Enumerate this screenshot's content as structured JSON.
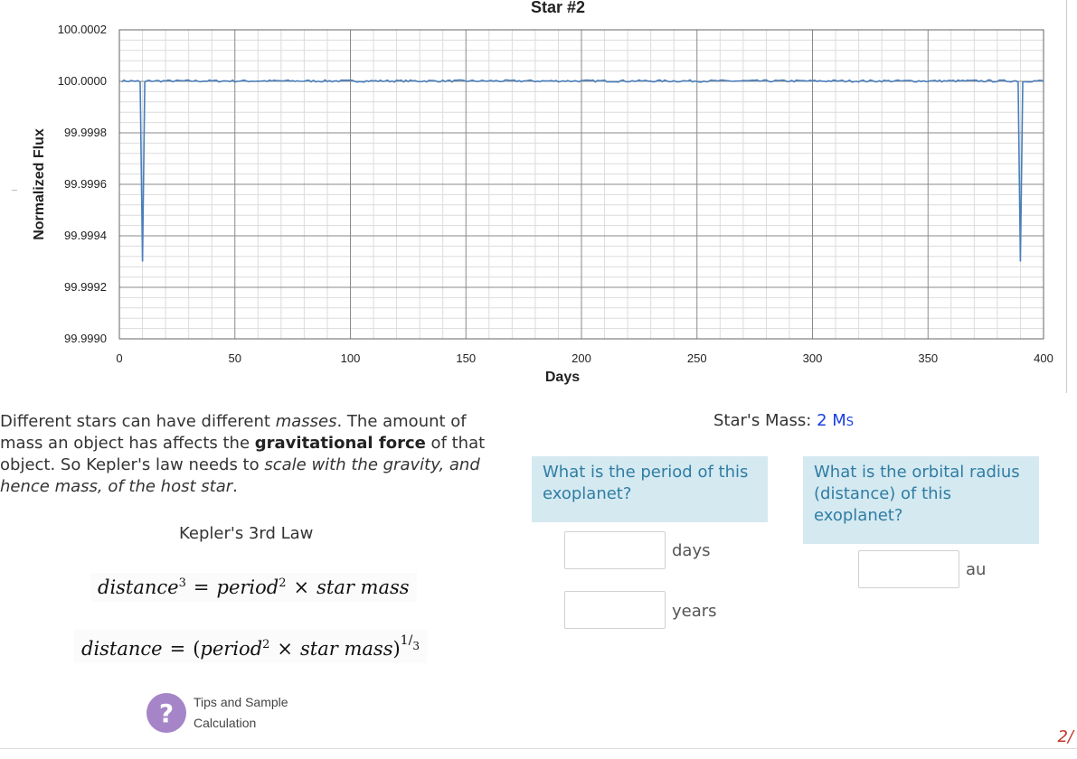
{
  "chart_data": {
    "type": "line",
    "title": "Star #2",
    "xlabel": "Days",
    "ylabel": "Normalized Flux",
    "xlim": [
      0,
      400
    ],
    "ylim": [
      99.999,
      100.0002
    ],
    "x_ticks": [
      "0",
      "50",
      "100",
      "150",
      "200",
      "250",
      "300",
      "350",
      "400"
    ],
    "y_ticks": [
      "100.0002",
      "100.0000",
      "99.9998",
      "99.9996",
      "99.9994",
      "99.9992",
      "99.9990"
    ],
    "grid": true,
    "baseline_flux": 100.0,
    "noise_amplitude": 5e-06,
    "transits": [
      {
        "day": 10,
        "min_flux": 99.9993
      },
      {
        "day": 390,
        "min_flux": 99.9993
      }
    ],
    "series_color": "#4a7ebb"
  },
  "lesson": {
    "intro_1": "Different stars can have different ",
    "intro_masses": "masses",
    "intro_2": ". The amount of mass an object has affects the ",
    "intro_force": "gravitational force",
    "intro_3": " of that object. So Kepler's law needs to ",
    "intro_scale": "scale with the gravity, and hence mass, of the host star",
    "intro_4": ".",
    "law_title": "Kepler's 3rd Law",
    "f1_lhs": "distance",
    "f1_lhs_exp": "3",
    "f1_eq": "=",
    "f1_period": "period",
    "f1_period_exp": "2",
    "f1_times": "×",
    "f1_mass": "star mass",
    "f2_lhs": "distance",
    "f2_eq": "=",
    "f2_open": "(",
    "f2_period": "period",
    "f2_period_exp": "2",
    "f2_times": "×",
    "f2_mass": "star mass",
    "f2_close": ")",
    "f2_exp_num": "1",
    "f2_exp_den": "3"
  },
  "help": {
    "icon": "question-mark-icon",
    "glyph": "?",
    "label": "Tips and Sample Calculation"
  },
  "mass": {
    "label": "Star's Mass: ",
    "value": "2 M",
    "sub": "S"
  },
  "questions": {
    "period": "What is the period of this exoplanet?",
    "radius": "What is the orbital radius (distance) of this exoplanet?"
  },
  "answers": {
    "days_value": "",
    "days_unit": "days",
    "years_value": "",
    "years_unit": "years",
    "au_value": "",
    "au_unit": "au"
  },
  "page_number": "2/"
}
